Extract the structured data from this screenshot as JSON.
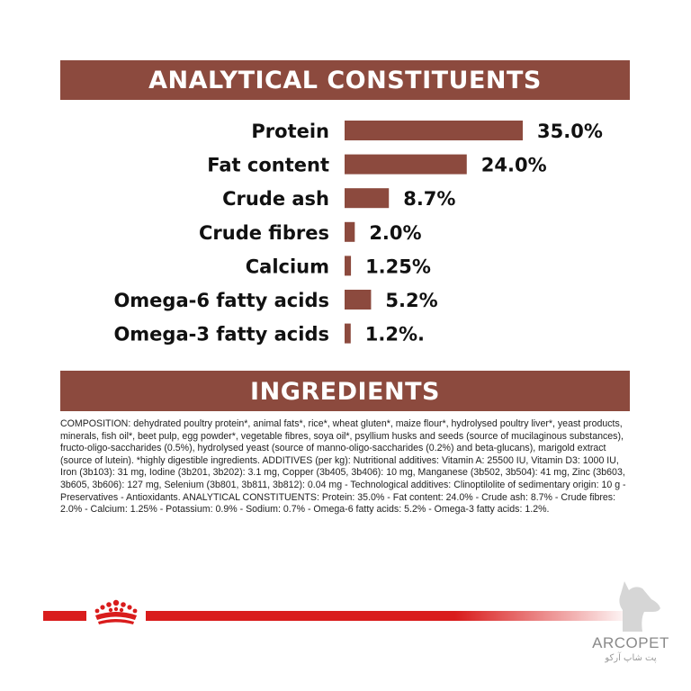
{
  "header": {
    "analytical_title": "ANALYTICAL CONSTITUENTS",
    "ingredients_title": "INGREDIENTS"
  },
  "colors": {
    "banner": "#8c4a3e",
    "bar": "#8c4a3e",
    "brand_red": "#d91c1c"
  },
  "chart_data": {
    "type": "bar",
    "orientation": "horizontal",
    "title": "ANALYTICAL CONSTITUENTS",
    "categories": [
      "Protein",
      "Fat content",
      "Crude ash",
      "Crude fibres",
      "Calcium",
      "Omega-6 fatty acids",
      "Omega-3 fatty acids"
    ],
    "values": [
      35.0,
      24.0,
      8.7,
      2.0,
      1.25,
      5.2,
      1.2
    ],
    "value_labels": [
      "35.0%",
      "24.0%",
      "8.7%",
      "2.0%",
      "1.25%",
      "5.2%",
      "1.2%."
    ],
    "xlim": [
      0,
      35
    ],
    "grid": false,
    "legend": "none"
  },
  "composition": "COMPOSITION: dehydrated poultry protein*, animal fats*, rice*, wheat gluten*, maize flour*, hydrolysed poultry liver*, yeast products, minerals, fish oil*, beet pulp, egg powder*, vegetable fibres, soya oil*, psyllium husks and seeds (source of mucilaginous substances), fructo-oligo-saccharides (0.5%), hydrolysed yeast (source of manno-oligo-saccharides (0.2%) and beta-glucans), marigold extract (source of lutein). *highly digestible ingredients. ADDITIVES (per kg): Nutritional additives: Vitamin A: 25500 IU, Vitamin D3: 1000 IU, Iron (3b103): 31 mg, Iodine (3b201, 3b202): 3.1 mg, Copper (3b405, 3b406): 10 mg, Manganese (3b502, 3b504): 41 mg, Zinc (3b603, 3b605, 3b606): 127 mg, Selenium (3b801, 3b811, 3b812): 0.04 mg - Technological additives: Clinoptilolite of sedimentary origin: 10 g - Preservatives - Antioxidants. ANALYTICAL CONSTITUENTS: Protein: 35.0% - Fat content: 24.0% - Crude ash: 8.7% - Crude fibres: 2.0% - Calcium: 1.25% - Potassium: 0.9% - Sodium: 0.7% - Omega-6 fatty acids: 5.2% - Omega-3 fatty acids: 1.2%.",
  "watermark": {
    "brand": "ARCOPET",
    "subtitle": "پت شاپ آرکو",
    "icon": "dog-head-icon"
  },
  "logo": {
    "icon": "royal-canin-crown-icon"
  }
}
